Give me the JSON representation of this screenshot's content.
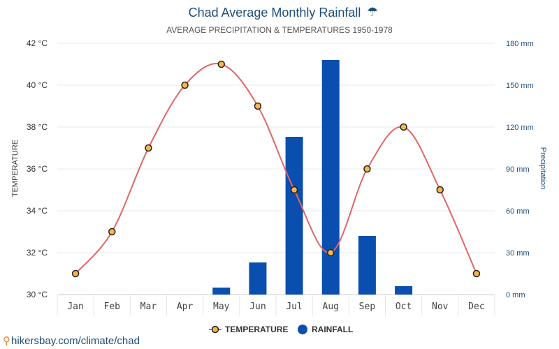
{
  "chart_data": {
    "type": "bar+line",
    "title": "Chad Average Monthly Rainfall",
    "subtitle": "AVERAGE PRECIPITATION & TEMPERATURES 1950-1978",
    "categories": [
      "Jan",
      "Feb",
      "Mar",
      "Apr",
      "May",
      "Jun",
      "Jul",
      "Aug",
      "Sep",
      "Oct",
      "Nov",
      "Dec"
    ],
    "series": [
      {
        "name": "TEMPERATURE",
        "type": "line",
        "axis": "left",
        "values": [
          31,
          33,
          37,
          40,
          41,
          39,
          35,
          32,
          36,
          38,
          35,
          31
        ]
      },
      {
        "name": "RAINFALL",
        "type": "bar",
        "axis": "right",
        "values": [
          0,
          0,
          0,
          0,
          5,
          23,
          113,
          168,
          42,
          6,
          0,
          0
        ]
      }
    ],
    "ylabel_left": "TEMPERATURE",
    "ylabel_right": "Precipitation",
    "ylim_left": [
      30,
      42
    ],
    "ylim_right": [
      0,
      180
    ],
    "yticks_left": [
      "30 °C",
      "32 °C",
      "34 °C",
      "36 °C",
      "38 °C",
      "40 °C",
      "42 °C"
    ],
    "yticks_right": [
      "0 mm",
      "30 mm",
      "60 mm",
      "90 mm",
      "120 mm",
      "150 mm",
      "180 mm"
    ],
    "colors": {
      "line": "#e06666",
      "bar": "#0a4fb0",
      "marker_fill": "#f6b64a",
      "title": "#1f4e79"
    },
    "legend": {
      "placement": "bottom-center",
      "items": [
        "TEMPERATURE",
        "RAINFALL"
      ]
    },
    "grid": true
  },
  "title_icon": "umbrella-icon",
  "source": "hikersbay.com/climate/chad"
}
